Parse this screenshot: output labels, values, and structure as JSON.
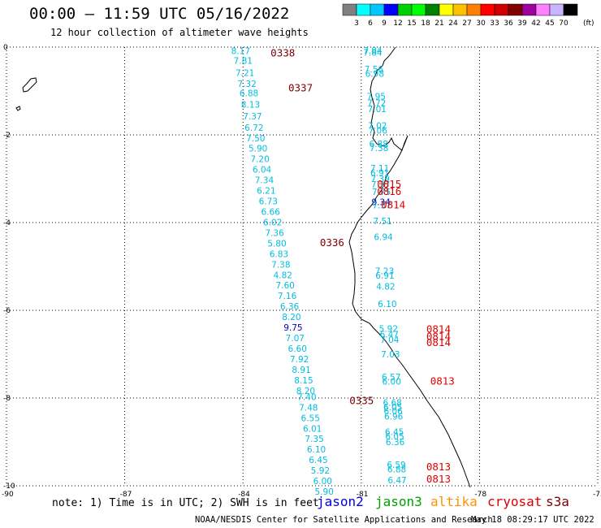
{
  "header": {
    "title": "00:00 – 11:59 UTC 05/16/2022",
    "subtitle": "12 hour collection of altimeter wave heights"
  },
  "colorbar": {
    "unit": "(ft)",
    "colors": [
      "#808080",
      "#00ffff",
      "#00c8ff",
      "#0000ff",
      "#00d000",
      "#00ff00",
      "#008000",
      "#ffff00",
      "#ffc000",
      "#ff8000",
      "#ff0000",
      "#d00000",
      "#800000",
      "#a000a0",
      "#ff80ff",
      "#c8b4ff",
      "#000000"
    ],
    "labels": [
      "3",
      "6",
      "9",
      "12",
      "15",
      "18",
      "21",
      "24",
      "27",
      "30",
      "33",
      "36",
      "39",
      "42",
      "45",
      "70"
    ]
  },
  "axes": {
    "x_ticks": [
      "-90",
      "-87",
      "-84",
      "-81",
      "-78",
      "-75"
    ],
    "y_ticks": [
      "0",
      "-2",
      "-4",
      "-6",
      "-8",
      "-10"
    ],
    "lon_range": [
      -90,
      -75
    ],
    "lat_range": [
      -10,
      0
    ]
  },
  "swh_colors": {
    "cyan": "#00bde0",
    "dark_red": "#800000",
    "red": "#e00000",
    "blue": "#0000c8"
  },
  "tracks": [
    {
      "pass_time": "0338",
      "time_color": "dark_red",
      "time_lat": -0.12,
      "time_lon": -83.3,
      "points": [
        {
          "lon": -84.3,
          "lat": -0.08,
          "v": "8.17"
        },
        {
          "lon": -84.24,
          "lat": -0.31,
          "v": "7.81"
        },
        {
          "lon": -84.19,
          "lat": -0.58,
          "v": "7.21"
        },
        {
          "lon": -84.14,
          "lat": -0.83,
          "v": "7.32"
        },
        {
          "lon": -84.09,
          "lat": -1.05,
          "v": "6.88"
        },
        {
          "lon": -84.05,
          "lat": -1.31,
          "v": "8.13"
        },
        {
          "lon": -84.0,
          "lat": -1.57,
          "v": "7.37"
        },
        {
          "lon": -83.96,
          "lat": -1.83,
          "v": "6.72"
        },
        {
          "lon": -83.92,
          "lat": -2.07,
          "v": "7.50"
        },
        {
          "lon": -83.86,
          "lat": -2.31,
          "v": "5.90"
        },
        {
          "lon": -83.81,
          "lat": -2.55,
          "v": "7.20"
        },
        {
          "lon": -83.76,
          "lat": -2.79,
          "v": "6.04"
        },
        {
          "lon": -83.7,
          "lat": -3.03,
          "v": "7.34"
        },
        {
          "lon": -83.65,
          "lat": -3.27,
          "v": "6.21"
        },
        {
          "lon": -83.6,
          "lat": -3.51,
          "v": "6.73"
        },
        {
          "lon": -83.54,
          "lat": -3.75,
          "v": "6.66"
        },
        {
          "lon": -83.49,
          "lat": -3.99,
          "v": "6.02"
        }
      ]
    },
    {
      "pass_time": "0337",
      "time_color": "dark_red",
      "time_lat": -0.92,
      "time_lon": -82.85,
      "points": []
    },
    {
      "pass_time": "0336",
      "time_color": "dark_red",
      "time_lat": -4.44,
      "time_lon": -82.05,
      "points": [
        {
          "lon": -83.44,
          "lat": -4.23,
          "v": "7.36"
        },
        {
          "lon": -83.38,
          "lat": -4.47,
          "v": "5.80"
        },
        {
          "lon": -83.33,
          "lat": -4.71,
          "v": "6.83"
        },
        {
          "lon": -83.28,
          "lat": -4.95,
          "v": "7.38"
        },
        {
          "lon": -83.23,
          "lat": -5.19,
          "v": "4.82"
        },
        {
          "lon": -83.17,
          "lat": -5.43,
          "v": "7.60"
        },
        {
          "lon": -83.12,
          "lat": -5.67,
          "v": "7.16"
        },
        {
          "lon": -83.06,
          "lat": -5.91,
          "v": "6.36"
        },
        {
          "lon": -83.01,
          "lat": -6.15,
          "v": "8.20"
        },
        {
          "lon": -82.97,
          "lat": -6.39,
          "v": "9.75",
          "color": "blue"
        },
        {
          "lon": -82.92,
          "lat": -6.63,
          "v": "7.07"
        },
        {
          "lon": -82.86,
          "lat": -6.87,
          "v": "6.60"
        },
        {
          "lon": -82.81,
          "lat": -7.11,
          "v": "7.92"
        },
        {
          "lon": -82.76,
          "lat": -7.35,
          "v": "8.91"
        },
        {
          "lon": -82.7,
          "lat": -7.59,
          "v": "8.15"
        }
      ]
    },
    {
      "pass_time": "0335",
      "time_color": "dark_red",
      "time_lat": -8.05,
      "time_lon": -81.3,
      "points": [
        {
          "lon": -82.65,
          "lat": -7.83,
          "v": "8.20"
        },
        {
          "lon": -82.62,
          "lat": -7.97,
          "v": "7.40"
        },
        {
          "lon": -82.58,
          "lat": -8.21,
          "v": "7.48"
        },
        {
          "lon": -82.53,
          "lat": -8.45,
          "v": "6.55"
        },
        {
          "lon": -82.48,
          "lat": -8.69,
          "v": "6.01"
        },
        {
          "lon": -82.43,
          "lat": -8.93,
          "v": "7.35"
        },
        {
          "lon": -82.38,
          "lat": -9.17,
          "v": "6.10"
        },
        {
          "lon": -82.33,
          "lat": -9.41,
          "v": "6.45"
        },
        {
          "lon": -82.28,
          "lat": -9.65,
          "v": "5.92"
        },
        {
          "lon": -82.22,
          "lat": -9.89,
          "v": "6.00"
        },
        {
          "lon": -82.18,
          "lat": -10.13,
          "v": "5.90"
        }
      ]
    },
    {
      "pass_time": "",
      "time_color": "red",
      "time_lat": 0,
      "time_lon": 0,
      "points": [
        {
          "lon": -80.95,
          "lat": -0.07,
          "v": "7.84"
        },
        {
          "lon": -80.95,
          "lat": -0.12,
          "v": "7.84"
        },
        {
          "lon": -80.92,
          "lat": -0.5,
          "v": "7.56"
        },
        {
          "lon": -80.9,
          "lat": -0.6,
          "v": "6.98"
        },
        {
          "lon": -80.86,
          "lat": -1.12,
          "v": "7.95"
        },
        {
          "lon": -80.85,
          "lat": -1.27,
          "v": "7.72"
        },
        {
          "lon": -80.84,
          "lat": -1.41,
          "v": "7.01"
        },
        {
          "lon": -80.83,
          "lat": -1.79,
          "v": "7.02"
        },
        {
          "lon": -80.82,
          "lat": -1.9,
          "v": "7.06"
        },
        {
          "lon": -80.8,
          "lat": -2.2,
          "v": "6.88"
        },
        {
          "lon": -80.79,
          "lat": -2.3,
          "v": "7.38"
        },
        {
          "lon": -80.77,
          "lat": -2.76,
          "v": "7.11"
        },
        {
          "lon": -80.77,
          "lat": -2.86,
          "v": "6.91"
        },
        {
          "lon": -80.76,
          "lat": -3.0,
          "v": "7.39"
        },
        {
          "lon": -80.75,
          "lat": -3.13,
          "v": "7.37"
        },
        {
          "lon": -80.73,
          "lat": -3.3,
          "v": "7.75"
        },
        {
          "lon": -80.74,
          "lat": -3.53,
          "v": "9.34",
          "color": "blue"
        },
        {
          "lon": -80.72,
          "lat": -3.6,
          "v": "7.37"
        },
        {
          "lon": -80.7,
          "lat": -3.96,
          "v": "7.51"
        },
        {
          "lon": -80.68,
          "lat": -4.32,
          "v": "6.94"
        },
        {
          "lon": -80.65,
          "lat": -5.1,
          "v": "7.23"
        },
        {
          "lon": -80.64,
          "lat": -5.2,
          "v": "6.91"
        },
        {
          "lon": -80.62,
          "lat": -5.45,
          "v": "4.82"
        },
        {
          "lon": -80.58,
          "lat": -5.85,
          "v": "6.10"
        },
        {
          "lon": -80.55,
          "lat": -6.42,
          "v": "5.92"
        },
        {
          "lon": -80.53,
          "lat": -6.55,
          "v": "6.47"
        },
        {
          "lon": -80.52,
          "lat": -6.67,
          "v": "7.04"
        },
        {
          "lon": -80.5,
          "lat": -7.0,
          "v": "7.03"
        },
        {
          "lon": -80.48,
          "lat": -7.52,
          "v": "6.57"
        },
        {
          "lon": -80.47,
          "lat": -7.62,
          "v": "6.00"
        },
        {
          "lon": -80.45,
          "lat": -8.1,
          "v": "6.68"
        },
        {
          "lon": -80.44,
          "lat": -8.2,
          "v": "6.05"
        },
        {
          "lon": -80.43,
          "lat": -8.3,
          "v": "6.06"
        },
        {
          "lon": -80.42,
          "lat": -8.42,
          "v": "6.96"
        },
        {
          "lon": -80.4,
          "lat": -8.77,
          "v": "6.45"
        },
        {
          "lon": -80.39,
          "lat": -8.87,
          "v": "6.05"
        },
        {
          "lon": -80.38,
          "lat": -9.0,
          "v": "6.36"
        },
        {
          "lon": -80.35,
          "lat": -9.52,
          "v": "6.59"
        },
        {
          "lon": -80.34,
          "lat": -9.62,
          "v": "6.88"
        },
        {
          "lon": -80.33,
          "lat": -9.87,
          "v": "6.47"
        }
      ]
    }
  ],
  "red_times": [
    {
      "t": "0815",
      "lon": -80.6,
      "lat": -3.11
    },
    {
      "t": "0816",
      "lon": -80.6,
      "lat": -3.28
    },
    {
      "t": "0814",
      "lon": -80.5,
      "lat": -3.58
    },
    {
      "t": "0814",
      "lon": -79.35,
      "lat": -6.42
    },
    {
      "t": "0814",
      "lon": -79.35,
      "lat": -6.58
    },
    {
      "t": "0814",
      "lon": -79.35,
      "lat": -6.72
    },
    {
      "t": "0813",
      "lon": -79.25,
      "lat": -7.6
    },
    {
      "t": "0813",
      "lon": -79.35,
      "lat": -9.56
    },
    {
      "t": "0813",
      "lon": -79.35,
      "lat": -9.83
    }
  ],
  "footer": {
    "note": "note: 1) Time is in UTC; 2) SWH is in feet",
    "satellites": [
      {
        "name": "jason2",
        "color": "#0000e0"
      },
      {
        "name": "jason3",
        "color": "#00a000"
      },
      {
        "name": "altika",
        "color": "#ff9000"
      },
      {
        "name": "cryosat",
        "color": "#e00000"
      },
      {
        "name": "s3a",
        "color": "#800000"
      }
    ],
    "credit": "NOAA/NESDIS Center for Satellite Applications and Research",
    "generated": "May 18 08:29:17 UTC 2022"
  }
}
